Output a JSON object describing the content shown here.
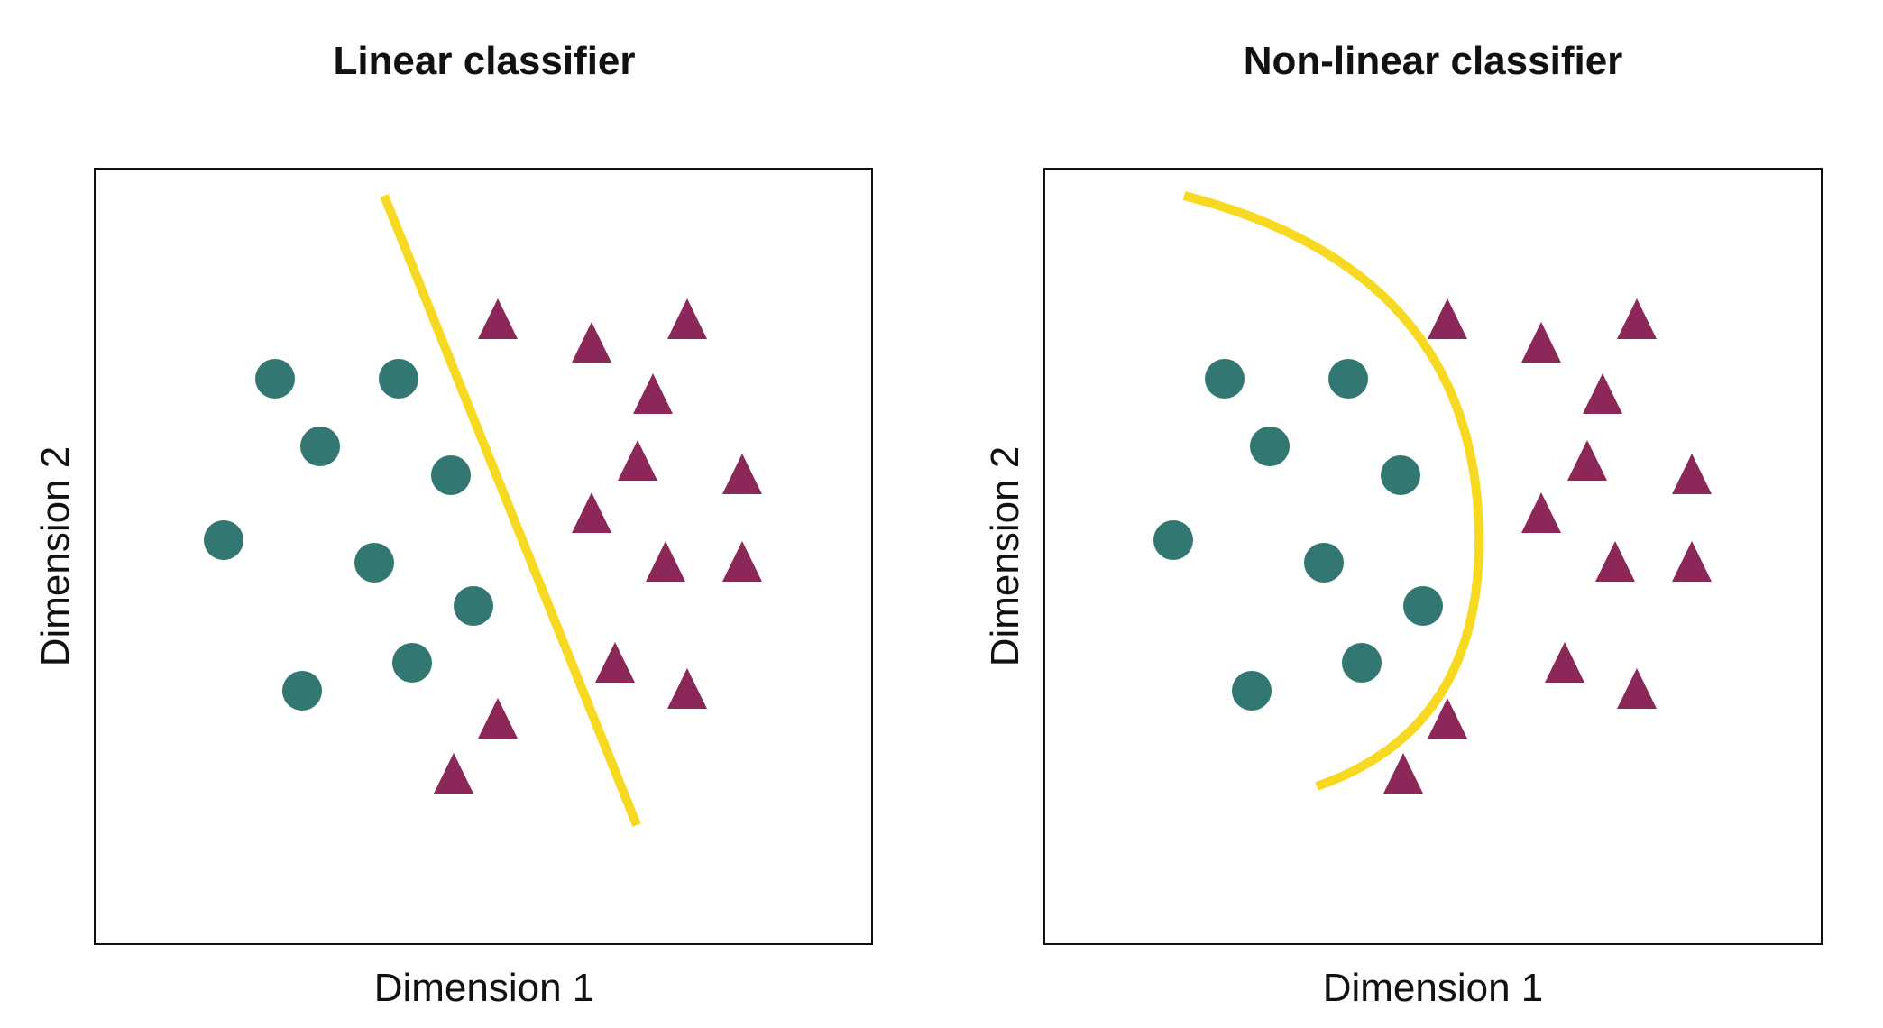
{
  "colors": {
    "class_a": "#337773",
    "class_b": "#8c2759",
    "boundary": "#f6d920",
    "frame": "#111111"
  },
  "panels": [
    {
      "title": "Linear classifier",
      "xlabel": "Dimension 1",
      "ylabel": "Dimension 2",
      "boundary_type": "line"
    },
    {
      "title": "Non-linear classifier",
      "xlabel": "Dimension 1",
      "ylabel": "Dimension 2",
      "boundary_type": "arc"
    }
  ]
}
